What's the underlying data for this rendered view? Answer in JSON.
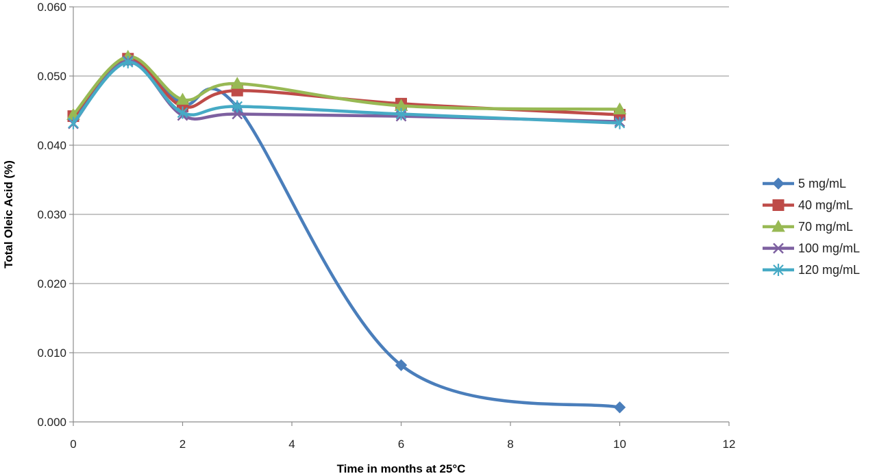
{
  "chart_data": {
    "type": "line",
    "title": "",
    "xlabel": "Time in months at 25°C",
    "ylabel": "Total Oleic Acid (%)",
    "xlim": [
      0,
      12
    ],
    "ylim": [
      0,
      0.06
    ],
    "x_ticks": [
      "0",
      "2",
      "4",
      "6",
      "8",
      "10",
      "12"
    ],
    "y_ticks": [
      "0.000",
      "0.010",
      "0.020",
      "0.030",
      "0.040",
      "0.050",
      "0.060"
    ],
    "grid": "horizontal",
    "legend_position": "right",
    "smoothed": true,
    "series": [
      {
        "name": "5 mg/mL",
        "color": "#4a7ebb",
        "marker": "diamond",
        "x": [
          0,
          1,
          2,
          3,
          6,
          10
        ],
        "y": [
          0.044,
          0.0522,
          0.046,
          0.0455,
          0.0082,
          0.0021
        ]
      },
      {
        "name": "40 mg/mL",
        "color": "#be4b48",
        "marker": "square",
        "x": [
          0,
          1,
          2,
          3,
          6,
          10
        ],
        "y": [
          0.0442,
          0.0525,
          0.0456,
          0.0479,
          0.046,
          0.0444
        ]
      },
      {
        "name": "70 mg/mL",
        "color": "#98b954",
        "marker": "triangle",
        "x": [
          0,
          1,
          2,
          3,
          6,
          10
        ],
        "y": [
          0.0444,
          0.0528,
          0.0466,
          0.0489,
          0.0457,
          0.0452
        ]
      },
      {
        "name": "100 mg/mL",
        "color": "#7d60a0",
        "marker": "x",
        "x": [
          0,
          1,
          2,
          3,
          6,
          10
        ],
        "y": [
          0.0431,
          0.0522,
          0.0443,
          0.0445,
          0.0442,
          0.0434
        ]
      },
      {
        "name": "120 mg/mL",
        "color": "#46aac5",
        "marker": "star",
        "x": [
          0,
          1,
          2,
          3,
          6,
          10
        ],
        "y": [
          0.0432,
          0.052,
          0.0447,
          0.0456,
          0.0445,
          0.0432
        ]
      }
    ]
  }
}
